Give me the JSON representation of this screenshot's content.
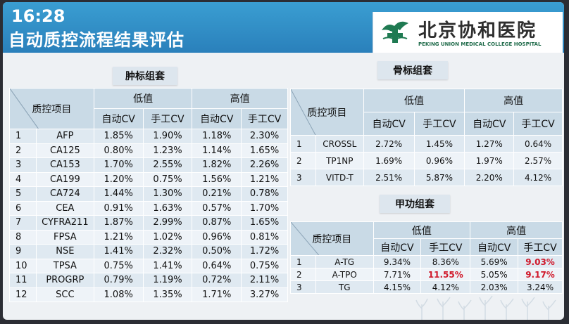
{
  "status": {
    "time": "16:28"
  },
  "header": {
    "title": "自动质控流程结果评估",
    "logo_cn": "北京协和医院",
    "logo_en": "PEKING UNION MEDICAL COLLEGE HOSPITAL"
  },
  "colors": {
    "header": "#2a80bb",
    "table_head": "#c9dae6",
    "table_row": "#dfe9f1",
    "highlight": "#d0182a"
  },
  "tumor": {
    "label": "肿标组套",
    "col_item": "质控项目",
    "low": "低值",
    "high": "高值",
    "auto_cv": "自动CV",
    "manual_cv": "手工CV",
    "rows": [
      {
        "n": "1",
        "name": "AFP",
        "la": "1.85%",
        "lm": "1.90%",
        "ha": "1.18%",
        "hm": "2.30%"
      },
      {
        "n": "2",
        "name": "CA125",
        "la": "0.80%",
        "lm": "1.23%",
        "ha": "1.14%",
        "hm": "1.65%"
      },
      {
        "n": "3",
        "name": "CA153",
        "la": "1.70%",
        "lm": "2.55%",
        "ha": "1.82%",
        "hm": "2.26%"
      },
      {
        "n": "4",
        "name": "CA199",
        "la": "1.20%",
        "lm": "0.75%",
        "ha": "1.56%",
        "hm": "1.21%"
      },
      {
        "n": "5",
        "name": "CA724",
        "la": "1.44%",
        "lm": "1.30%",
        "ha": "0.21%",
        "hm": "0.78%"
      },
      {
        "n": "6",
        "name": "CEA",
        "la": "0.91%",
        "lm": "1.63%",
        "ha": "0.57%",
        "hm": "1.70%"
      },
      {
        "n": "7",
        "name": "CYFRA211",
        "la": "1.87%",
        "lm": "2.99%",
        "ha": "0.87%",
        "hm": "1.65%"
      },
      {
        "n": "8",
        "name": "FPSA",
        "la": "1.21%",
        "lm": "1.02%",
        "ha": "0.96%",
        "hm": "0.81%"
      },
      {
        "n": "9",
        "name": "NSE",
        "la": "1.41%",
        "lm": "2.32%",
        "ha": "0.50%",
        "hm": "1.72%"
      },
      {
        "n": "10",
        "name": "TPSA",
        "la": "0.75%",
        "lm": "1.41%",
        "ha": "0.64%",
        "hm": "0.75%"
      },
      {
        "n": "11",
        "name": "PROGRP",
        "la": "0.79%",
        "lm": "1.19%",
        "ha": "0.72%",
        "hm": "2.11%"
      },
      {
        "n": "12",
        "name": "SCC",
        "la": "1.08%",
        "lm": "1.35%",
        "ha": "1.71%",
        "hm": "3.27%"
      }
    ]
  },
  "bone": {
    "label": "骨标组套",
    "col_item": "质控项目",
    "low": "低值",
    "high": "高值",
    "auto_cv": "自动CV",
    "manual_cv": "手工CV",
    "rows": [
      {
        "n": "1",
        "name": "CROSSL",
        "la": "2.72%",
        "lm": "1.45%",
        "ha": "1.27%",
        "hm": "0.64%"
      },
      {
        "n": "2",
        "name": "TP1NP",
        "la": "1.69%",
        "lm": "0.96%",
        "ha": "1.97%",
        "hm": "2.57%"
      },
      {
        "n": "3",
        "name": "VITD-T",
        "la": "2.51%",
        "lm": "5.87%",
        "ha": "2.20%",
        "hm": "4.12%"
      }
    ]
  },
  "thyroid": {
    "label": "甲功组套",
    "col_item": "质控项目",
    "low": "低值",
    "high": "高值",
    "auto_cv": "自动CV",
    "manual_cv": "手工CV",
    "rows": [
      {
        "n": "1",
        "name": "A-TG",
        "la": "9.34%",
        "lm": "8.36%",
        "ha": "5.69%",
        "hm": "9.03%",
        "red": [
          "hm"
        ]
      },
      {
        "n": "2",
        "name": "A-TPO",
        "la": "7.71%",
        "lm": "11.55%",
        "ha": "5.05%",
        "hm": "9.17%",
        "red": [
          "lm",
          "hm"
        ]
      },
      {
        "n": "3",
        "name": "TG",
        "la": "4.15%",
        "lm": "4.12%",
        "ha": "2.03%",
        "hm": "3.24%",
        "red": []
      }
    ]
  }
}
